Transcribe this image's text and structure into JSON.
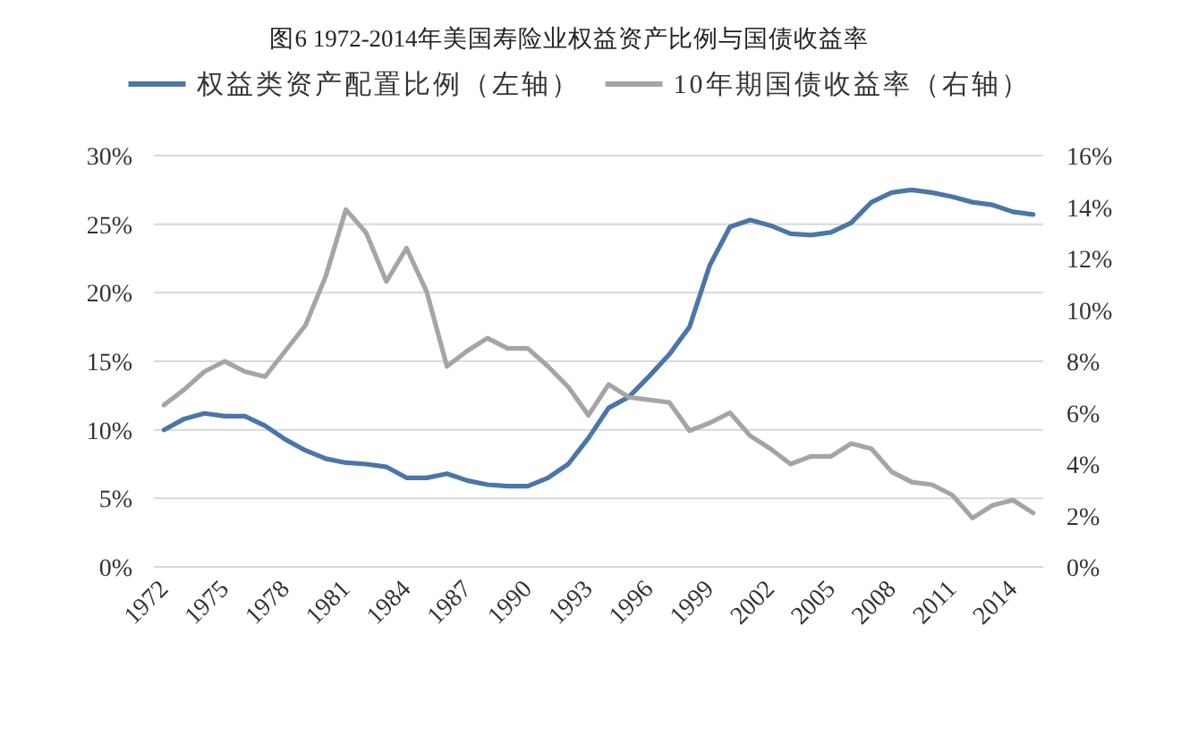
{
  "chart_data": {
    "type": "line",
    "title": "图6 1972-2014年美国寿险业权益资产比例与国债收益率",
    "categories": [
      "1972",
      null,
      null,
      "1975",
      null,
      null,
      "1978",
      null,
      null,
      "1981",
      null,
      null,
      "1984",
      null,
      null,
      "1987",
      null,
      null,
      "1990",
      null,
      null,
      "1993",
      null,
      null,
      "1996",
      null,
      null,
      "1999",
      null,
      null,
      "2002",
      null,
      null,
      "2005",
      null,
      null,
      "2008",
      null,
      null,
      "2011",
      null,
      null,
      "2014",
      null
    ],
    "series": [
      {
        "name": "权益类资产配置比例（左轴）",
        "color": "#4a76a8",
        "values": [
          10.0,
          10.8,
          11.2,
          11.0,
          11.0,
          10.3,
          9.3,
          8.5,
          7.9,
          7.6,
          7.5,
          7.3,
          6.5,
          6.5,
          6.8,
          6.3,
          6.0,
          5.9,
          5.9,
          6.5,
          7.5,
          9.4,
          11.6,
          12.4,
          13.9,
          15.5,
          17.5,
          22.0,
          24.8,
          25.3,
          24.9,
          24.3,
          24.2,
          24.4,
          25.1,
          26.6,
          27.3,
          27.5,
          27.3,
          27.0,
          26.6,
          26.4,
          25.9,
          25.7
        ]
      },
      {
        "name": "10年期国债收益率（右轴）",
        "color": "#a5a5a5",
        "axis": "y2",
        "values": [
          6.3,
          6.9,
          7.6,
          8.0,
          7.6,
          7.4,
          8.4,
          9.4,
          11.3,
          13.9,
          13.0,
          11.1,
          12.4,
          10.7,
          7.8,
          8.4,
          8.9,
          8.5,
          8.5,
          7.8,
          7.0,
          5.9,
          7.1,
          6.6,
          6.5,
          6.4,
          5.3,
          5.6,
          6.0,
          5.1,
          4.6,
          4.0,
          4.3,
          4.3,
          4.8,
          4.6,
          3.7,
          3.3,
          3.2,
          2.8,
          1.9,
          2.4,
          2.6,
          2.1
        ]
      }
    ],
    "ylim": [
      0,
      30
    ],
    "yticks": [
      {
        "value": 0,
        "label": "0%"
      },
      {
        "value": 5,
        "label": "5%"
      },
      {
        "value": 10,
        "label": "10%"
      },
      {
        "value": 15,
        "label": "15%"
      },
      {
        "value": 20,
        "label": "20%"
      },
      {
        "value": 25,
        "label": "25%"
      },
      {
        "value": 30,
        "label": "30%"
      }
    ],
    "y2lim": [
      0,
      16
    ],
    "y2ticks": [
      {
        "value": 0,
        "label": "0%"
      },
      {
        "value": 2,
        "label": "2%"
      },
      {
        "value": 4,
        "label": "4%"
      },
      {
        "value": 6,
        "label": "6%"
      },
      {
        "value": 8,
        "label": "8%"
      },
      {
        "value": 10,
        "label": "10%"
      },
      {
        "value": 12,
        "label": "12%"
      },
      {
        "value": 14,
        "label": "14%"
      },
      {
        "value": 16,
        "label": "16%"
      }
    ],
    "grid": "y",
    "legend": "top"
  }
}
